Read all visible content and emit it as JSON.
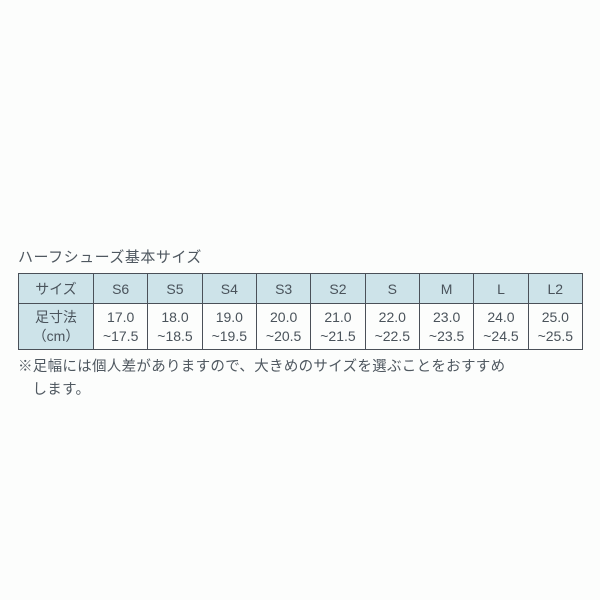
{
  "table": {
    "title": "ハーフシューズ基本サイズ",
    "row_label_col": "サイズ",
    "row_value_col": "足寸法\n（cm）",
    "columns": [
      "S6",
      "S5",
      "S4",
      "S3",
      "S2",
      "S",
      "M",
      "L",
      "L2"
    ],
    "values": [
      "17.0\n~17.5",
      "18.0\n~18.5",
      "19.0\n~19.5",
      "20.0\n~20.5",
      "21.0\n~21.5",
      "22.0\n~22.5",
      "23.0\n~23.5",
      "24.0\n~24.5",
      "25.0\n~25.5"
    ],
    "header_bg": "#cde3e9",
    "border_color": "#4a5058",
    "text_color": "#4a535b"
  },
  "note_line1": "※足幅には個人差がありますので、大きめのサイズを選ぶことをおすすめ",
  "note_line2": "します。"
}
